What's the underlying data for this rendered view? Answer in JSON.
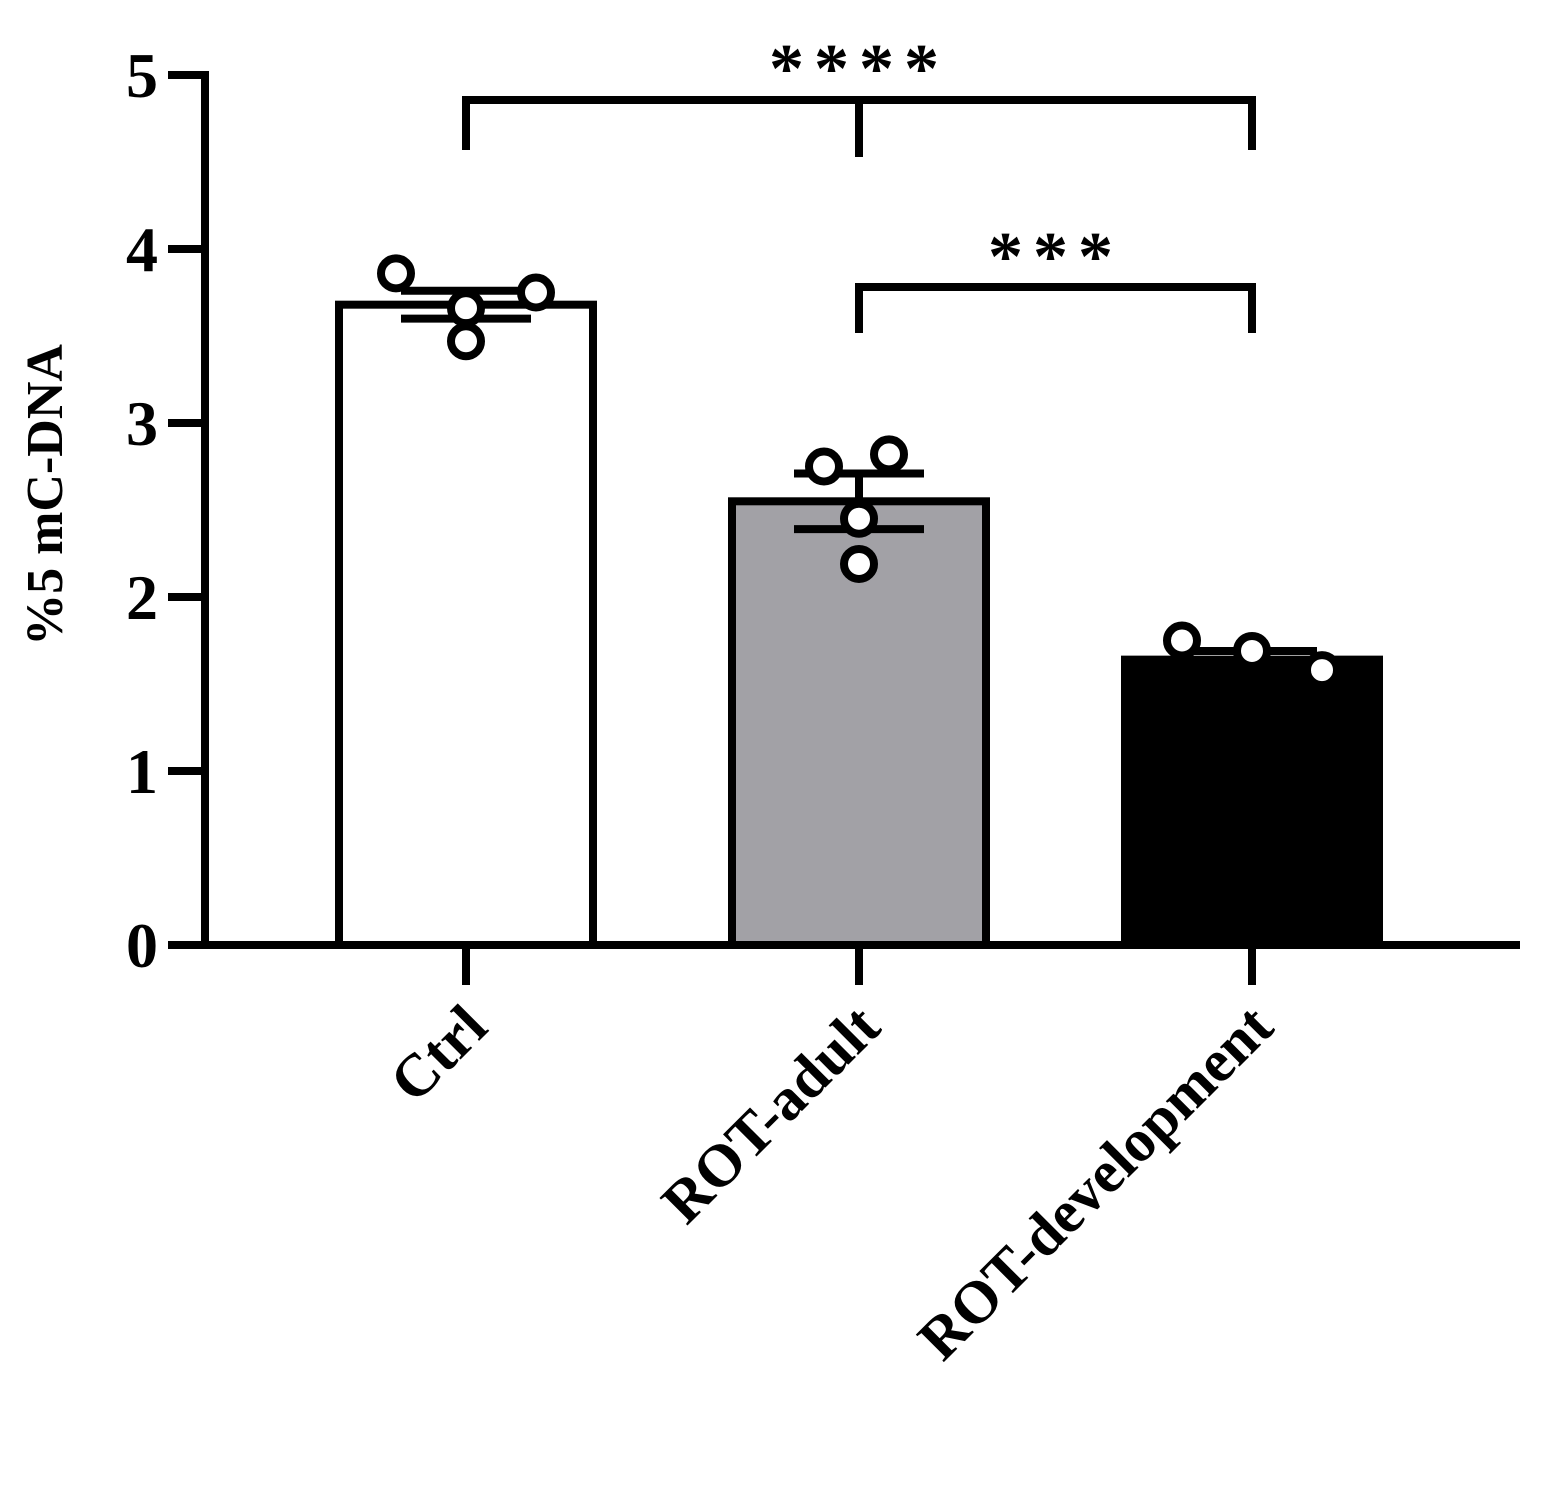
{
  "chart_data": {
    "type": "bar",
    "categories": [
      "Ctrl",
      "ROT-adult",
      "ROT-development"
    ],
    "values": [
      3.68,
      2.55,
      1.64
    ],
    "error": [
      0.08,
      0.16,
      0.05
    ],
    "points": [
      [
        3.86,
        3.66,
        3.47,
        3.75
      ],
      [
        2.75,
        2.82,
        2.45,
        2.19
      ],
      [
        1.75,
        1.69,
        1.57,
        1.58
      ]
    ],
    "bar_colors": [
      "#ffffff",
      "#a2a1a6",
      "#000000"
    ],
    "ylabel": "%5 mC-DNA",
    "ylim": [
      0,
      5
    ],
    "yticks": [
      "0",
      "1",
      "2",
      "3",
      "4",
      "5"
    ],
    "significance": [
      {
        "label": "****",
        "from": 0,
        "to": 2,
        "middle_tick": 1
      },
      {
        "label": "***",
        "from": 1,
        "to": 2
      }
    ],
    "grid": false
  }
}
